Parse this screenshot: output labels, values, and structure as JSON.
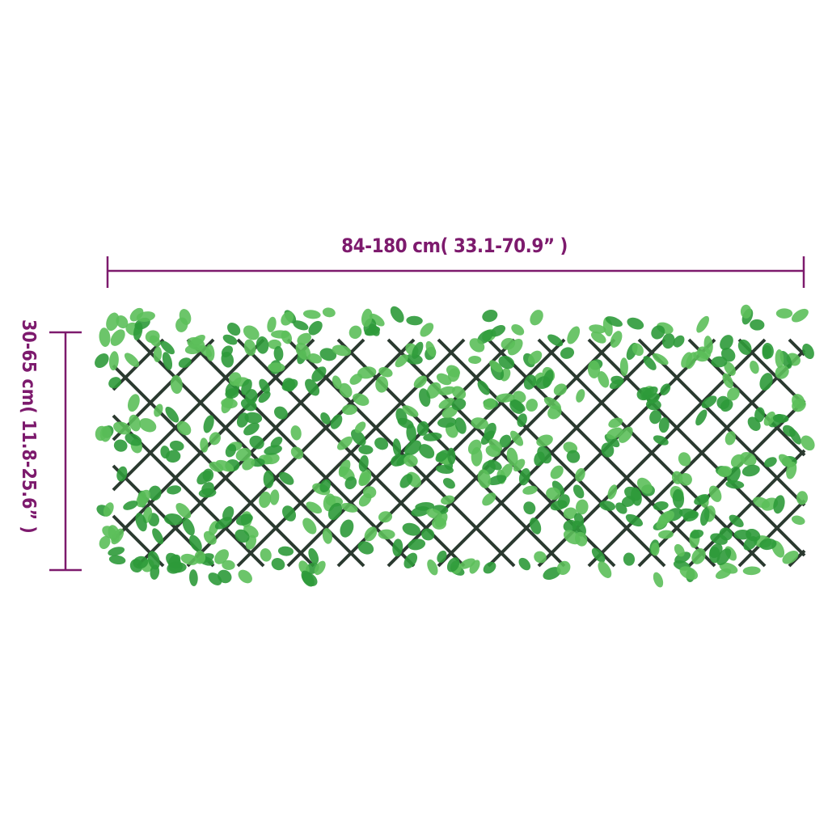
{
  "dimensions": {
    "width_label": "84-180 cm( 33.1-70.9” )",
    "height_label": "30-65 cm( 11.8-25.6” )"
  },
  "colors": {
    "dimension": "#7d1a6d",
    "lattice": "#2b3a30",
    "leaf_light": "#5cbf5a",
    "leaf_dark": "#2e9a3a"
  },
  "product": {
    "image": "expandable-willow-trellis-with-artificial-leaves"
  }
}
